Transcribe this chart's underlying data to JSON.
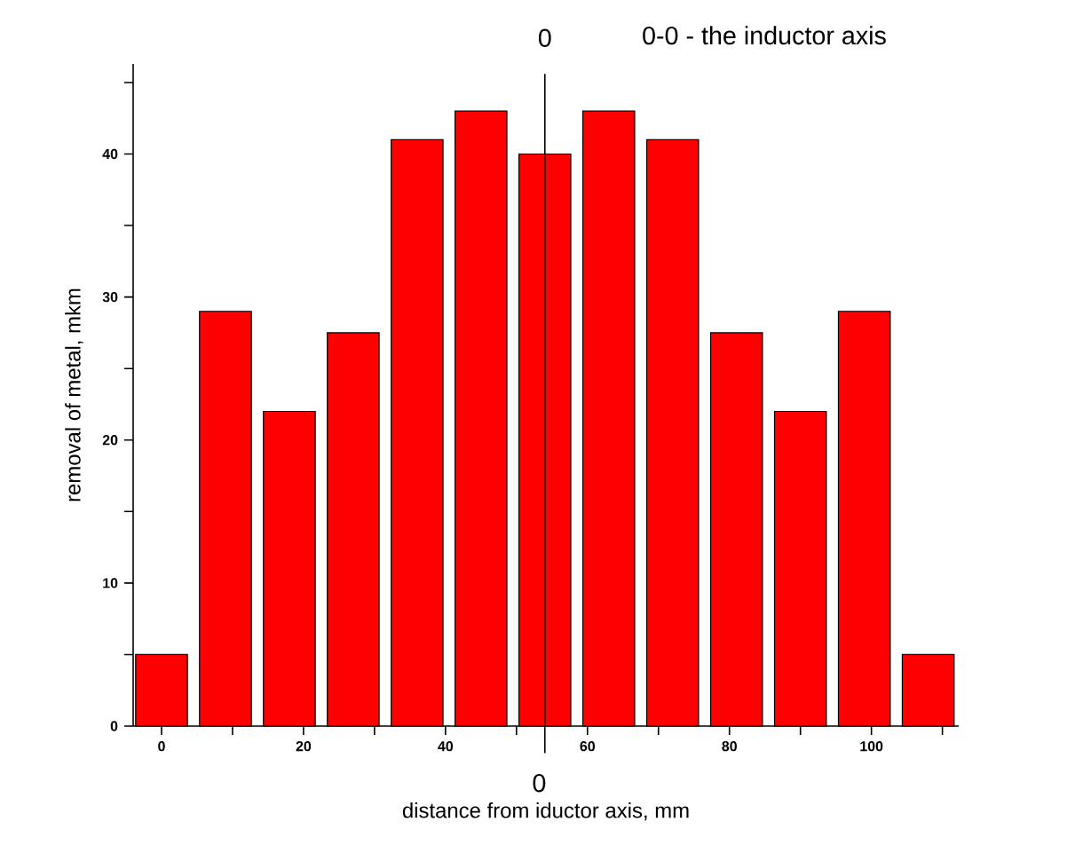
{
  "chart_data": {
    "type": "bar",
    "xlabel": "distance from iductor axis, mm",
    "ylabel": "removal of metal, mkm",
    "x": [
      0,
      9,
      18,
      27,
      36,
      45,
      54,
      63,
      72,
      81,
      90,
      99,
      108
    ],
    "values": [
      5,
      29,
      22,
      27.5,
      41,
      43,
      40,
      43,
      41,
      27.5,
      22,
      29,
      5
    ],
    "color": "#ff0000",
    "xlim": [
      -4,
      112.3
    ],
    "ylim": [
      0,
      46.3
    ],
    "xticks": [
      0,
      {
        "value": 10,
        "label": null
      },
      20,
      {
        "value": 30,
        "label": null
      },
      40,
      {
        "value": 50,
        "label": null
      },
      60,
      {
        "value": 70,
        "label": null
      },
      80,
      {
        "value": 90,
        "label": null
      },
      100,
      {
        "value": 110,
        "label": null
      }
    ],
    "yticks": [
      0,
      {
        "value": 5,
        "label": null
      },
      10,
      {
        "value": 15,
        "label": null
      },
      20,
      {
        "value": 25,
        "label": null
      },
      30,
      {
        "value": 35,
        "label": null
      },
      40,
      {
        "value": 45,
        "label": null
      }
    ],
    "ref_lines": [
      {
        "axis": "x",
        "value": 54,
        "color": "#000000"
      }
    ],
    "annotations": [
      "0-0  - the inductor axis",
      "0",
      "0"
    ],
    "grid": false
  }
}
